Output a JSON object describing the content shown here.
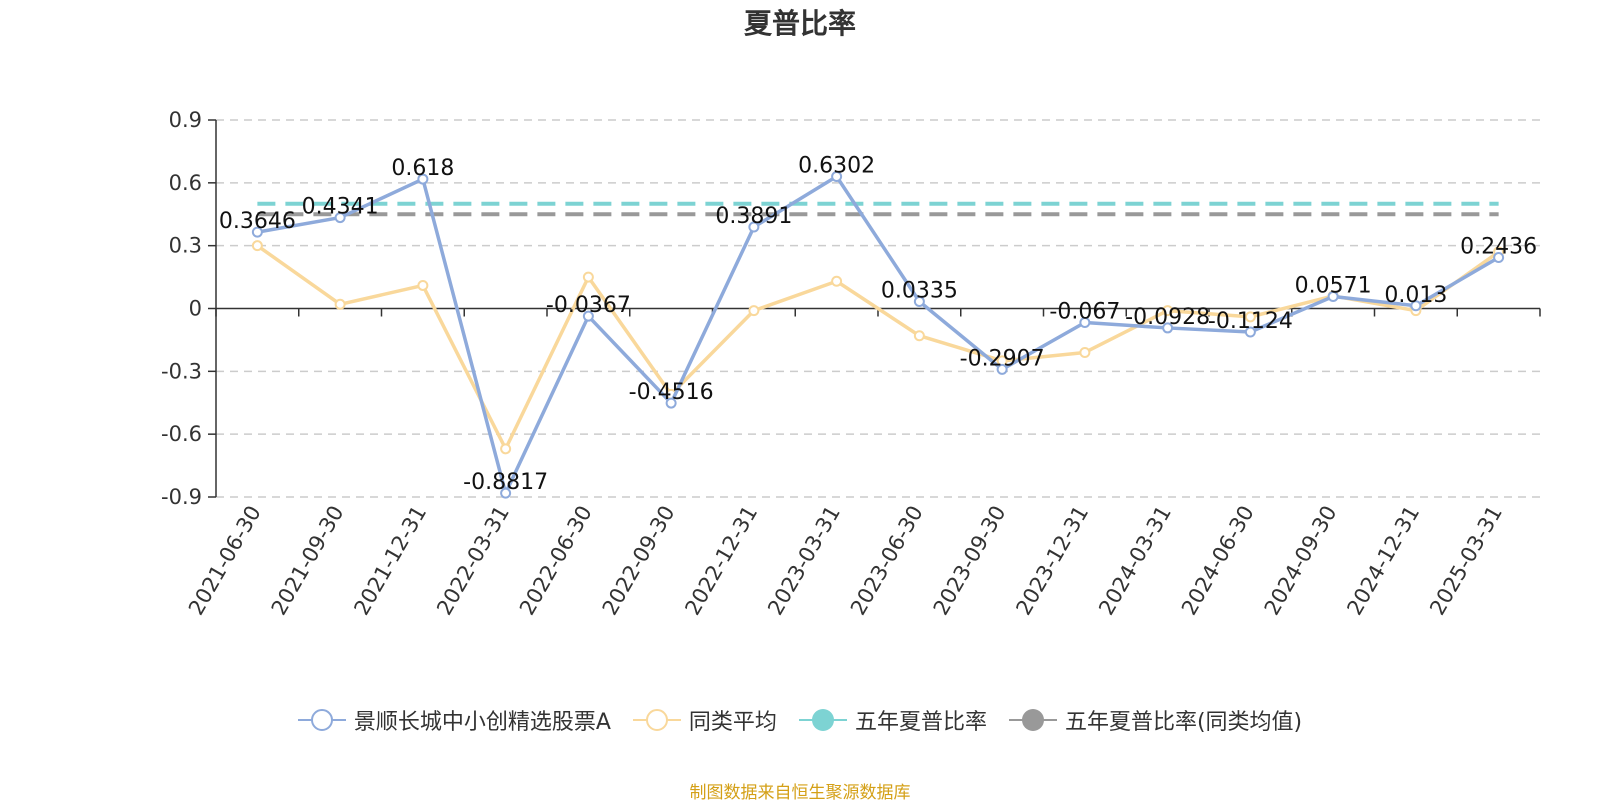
{
  "chart_data": {
    "type": "line",
    "title": "夏普比率",
    "categories": [
      "2021-06-30",
      "2021-09-30",
      "2021-12-31",
      "2022-03-31",
      "2022-06-30",
      "2022-09-30",
      "2022-12-31",
      "2023-03-31",
      "2023-06-30",
      "2023-09-30",
      "2023-12-31",
      "2024-03-31",
      "2024-06-30",
      "2024-09-30",
      "2024-12-31",
      "2025-03-31"
    ],
    "ylim": [
      -0.9,
      0.9
    ],
    "yticks": [
      "0.9",
      "0.6",
      "0.3",
      "0",
      "-0.3",
      "-0.6",
      "-0.9"
    ],
    "ytick_values": [
      0.9,
      0.6,
      0.3,
      0,
      -0.3,
      -0.6,
      -0.9
    ],
    "grid": true,
    "legend_position": "bottom",
    "series": [
      {
        "name": "景顺长城中小创精选股票A",
        "color": "#8eaadb",
        "values": [
          0.3646,
          0.4341,
          0.618,
          -0.8817,
          -0.0367,
          -0.4516,
          0.3891,
          0.6302,
          0.0335,
          -0.2907,
          -0.067,
          -0.0928,
          -0.1124,
          0.0571,
          0.013,
          0.2436
        ],
        "labels": [
          "0.3646",
          "0.4341",
          "0.618",
          "-0.8817",
          "-0.0367",
          "-0.4516",
          "0.3891",
          "0.6302",
          "0.0335",
          "-0.2907",
          "-0.067",
          "-0.0928",
          "-0.1124",
          "0.0571",
          "0.013",
          "0.2436"
        ]
      },
      {
        "name": "同类平均",
        "color": "#f9d89b",
        "values": [
          0.3,
          0.02,
          0.11,
          -0.67,
          0.15,
          -0.41,
          -0.01,
          0.13,
          -0.13,
          -0.25,
          -0.21,
          -0.01,
          -0.04,
          0.06,
          -0.01,
          0.27
        ]
      },
      {
        "name": "五年夏普比率",
        "color": "#7dd3d3",
        "dashed": true,
        "constant": 0.5
      },
      {
        "name": "五年夏普比率(同类均值)",
        "color": "#999999",
        "dashed": true,
        "constant": 0.45
      }
    ]
  },
  "source_note": "制图数据来自恒生聚源数据库"
}
